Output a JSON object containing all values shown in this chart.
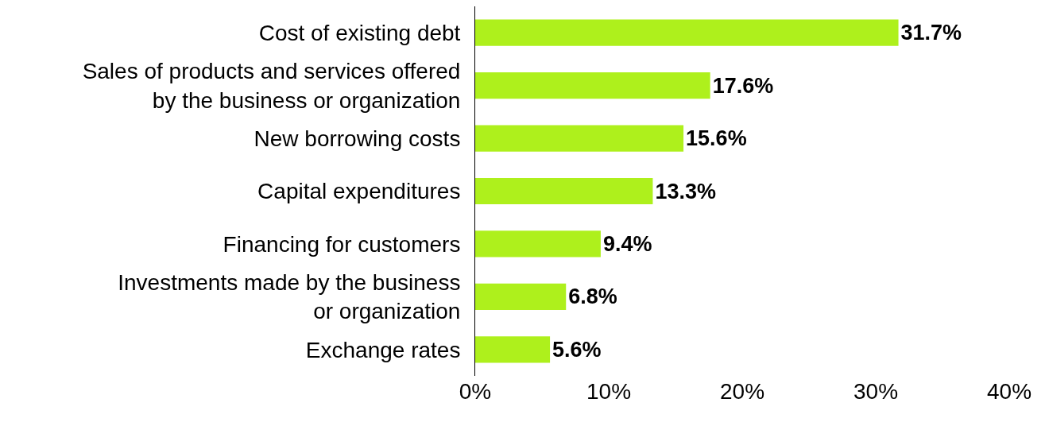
{
  "chart_data": {
    "type": "bar",
    "orientation": "horizontal",
    "categories": [
      "Cost of existing debt",
      "Sales of products and services offered\nby the business or organization",
      "New borrowing costs",
      "Capital expenditures",
      "Financing for customers",
      "Investments made by the business\nor organization",
      "Exchange rates"
    ],
    "values": [
      31.7,
      17.6,
      15.6,
      13.3,
      9.4,
      6.8,
      5.6
    ],
    "value_labels": [
      "31.7%",
      "17.6%",
      "15.6%",
      "13.3%",
      "9.4%",
      "6.8%",
      "5.6%"
    ],
    "color": "#aef01c",
    "xlim": [
      0,
      40
    ],
    "xticks": [
      {
        "value": 0,
        "label": "0%"
      },
      {
        "value": 10,
        "label": "10%"
      },
      {
        "value": 20,
        "label": "20%"
      },
      {
        "value": 30,
        "label": "30%"
      },
      {
        "value": 40,
        "label": "40%"
      }
    ],
    "legend": false
  }
}
